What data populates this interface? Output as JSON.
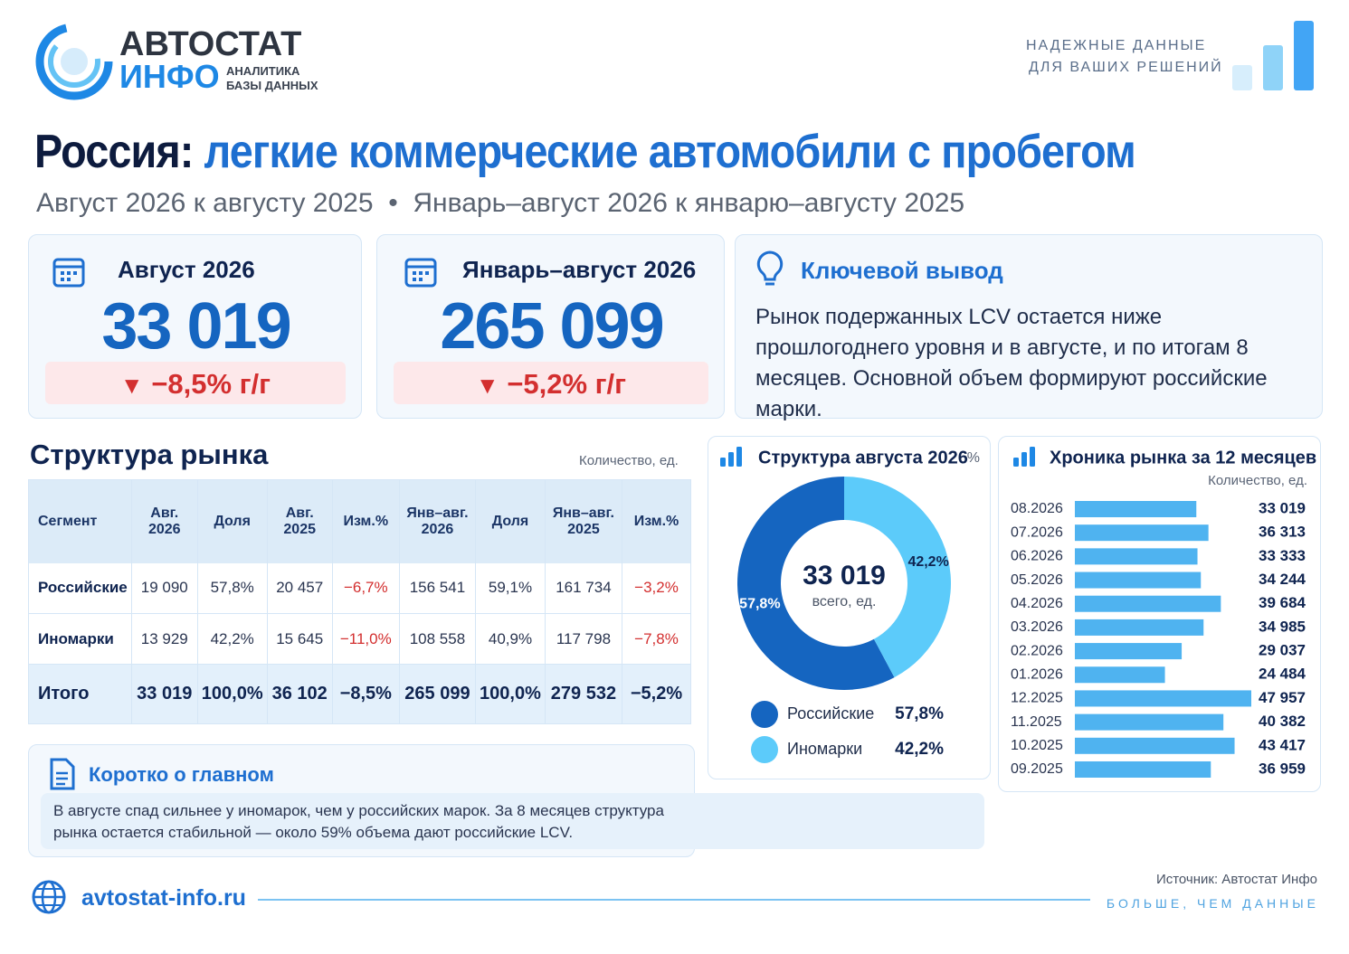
{
  "header": {
    "logo_top": "АВТОСТАТ",
    "logo_bottom": "ИНФО",
    "logo_sub1": "АНАЛИТИКА",
    "logo_sub2": "БАЗЫ ДАННЫХ",
    "tagline1": "НАДЕЖНЫЕ ДАННЫЕ",
    "tagline2": "ДЛЯ ВАШИХ РЕШЕНИЙ"
  },
  "title": {
    "lead": "Россия:",
    "main": "легкие коммерческие автомобили с пробегом",
    "subtitle": "Август 2026 к августу 2025  •  Январь–август 2026 к январю–августу 2025"
  },
  "kpis": [
    {
      "label": "Август 2026",
      "value": "33 019",
      "change": "−8,5% г/г"
    },
    {
      "label": "Январь–август 2026",
      "value": "265 099",
      "change": "−5,2% г/г"
    }
  ],
  "key_finding": {
    "title": "Ключевой вывод",
    "text": "Рынок подержанных LCV остается ниже прошлогоднего уровня и в августе, и по итогам 8 месяцев. Основной объем формируют российские марки."
  },
  "structure": {
    "title": "Структура рынка",
    "unit": "Количество, ед.",
    "columns": [
      "Сегмент",
      "Авг. 2026",
      "Доля",
      "Авг. 2025",
      "Изм.%",
      "Янв–авг. 2026",
      "Доля",
      "Янв–авг. 2025",
      "Изм.%"
    ],
    "rows": [
      [
        "Российские",
        "19 090",
        "57,8%",
        "20 457",
        "−6,7%",
        "156 541",
        "59,1%",
        "161 734",
        "−3,2%"
      ],
      [
        "Иномарки",
        "13 929",
        "42,2%",
        "15 645",
        "−11,0%",
        "108 558",
        "40,9%",
        "117 798",
        "−7,8%"
      ],
      [
        "Итого",
        "33 019",
        "100,0%",
        "36 102",
        "−8,5%",
        "265 099",
        "100,0%",
        "279 532",
        "−5,2%"
      ]
    ]
  },
  "chart_data": [
    {
      "type": "pie",
      "title": "Структура августа 2026",
      "unit": "%",
      "center_value": "33 019",
      "center_label": "всего, ед.",
      "categories": [
        "Российские",
        "Иномарки"
      ],
      "values": [
        57.8,
        42.2
      ],
      "value_labels": [
        "57,8%",
        "42,2%"
      ],
      "colors": [
        "#1565c0",
        "#5ccbfa"
      ]
    },
    {
      "type": "bar",
      "orientation": "horizontal",
      "title": "Хроника рынка за 12 месяцев",
      "unit": "Количество, ед.",
      "categories": [
        "08.2026",
        "07.2026",
        "06.2026",
        "05.2026",
        "04.2026",
        "03.2026",
        "02.2026",
        "01.2026",
        "12.2025",
        "11.2025",
        "10.2025",
        "09.2025"
      ],
      "values": [
        33019,
        36313,
        33333,
        34244,
        39684,
        34985,
        29037,
        24484,
        47957,
        40382,
        43417,
        36959
      ],
      "value_labels": [
        "33 019",
        "36 313",
        "33 333",
        "34 244",
        "39 684",
        "34 985",
        "29 037",
        "24 484",
        "47 957",
        "40 382",
        "43 417",
        "36 959"
      ],
      "color": "#4fb3f0"
    }
  ],
  "summary": {
    "title": "Коротко о главном",
    "text": "В августе спад сильнее у иномарок, чем у российских марок. За 8 месяцев структура рынка остается стабильной — около 59% объема дают российские LCV."
  },
  "footer": {
    "site": "avtostat-info.ru",
    "source": "Источник: Автостат Инфо",
    "slogan": "БОЛЬШЕ, ЧЕМ ДАННЫЕ"
  }
}
